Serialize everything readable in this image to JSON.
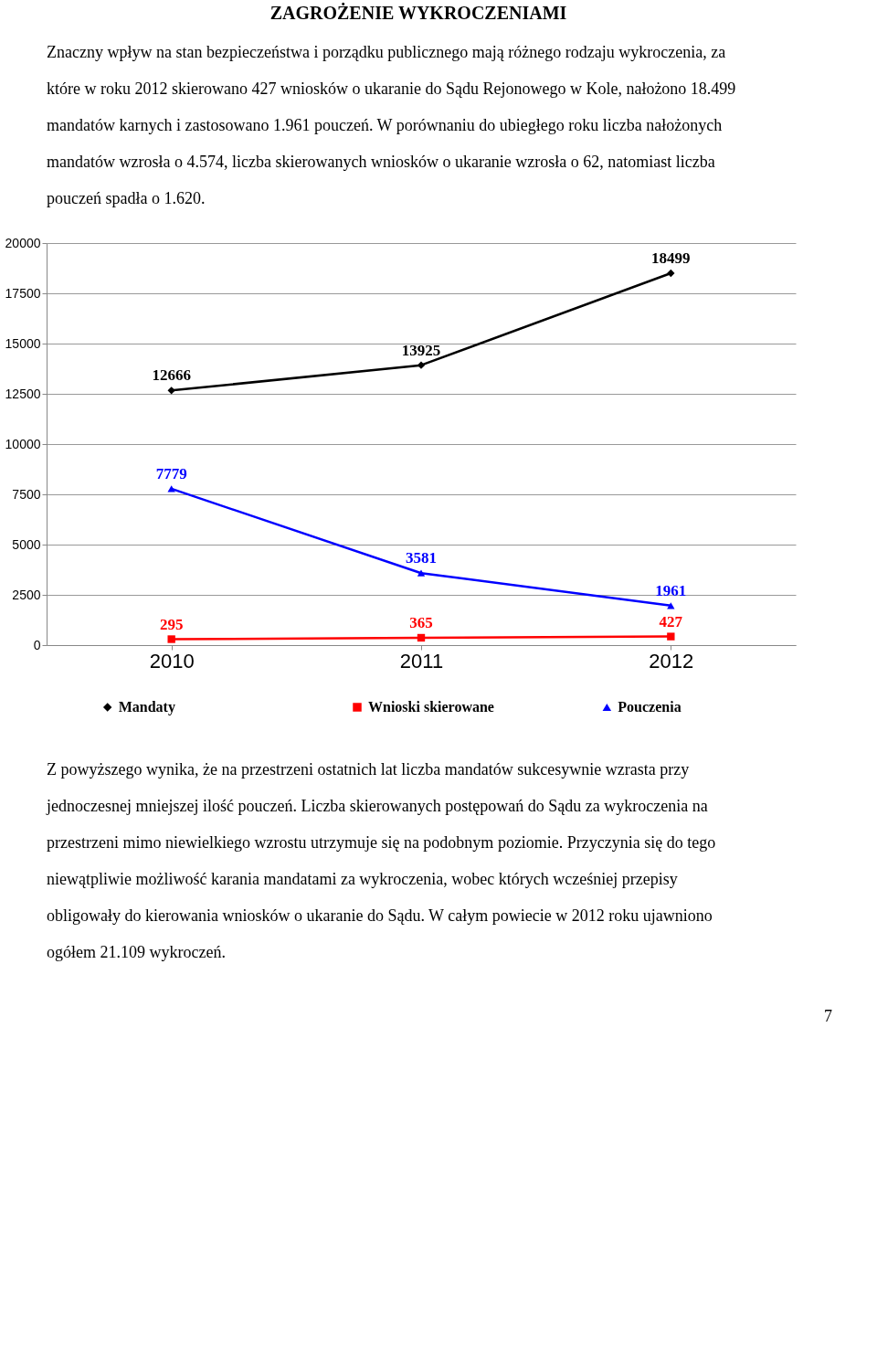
{
  "chart_data": {
    "type": "line",
    "title": "ZAGROŻENIE WYKROCZENIAMI",
    "subtitle": "Znaczny wpływ na stan bezpieczeństwa i porządku publicznego mają różnego rodzaju wykroczenia, za które w roku 2012 skierowano 427 wniosków o ukaranie do Sądu Rejonowego w Kole, nałożono 18.499 mandatów karnych i zastosowano 1.961 pouczeń. W porównaniu do ubiegłego roku liczba nałożonych mandatów wzrosła o 4.574, liczba skierowanych wniosków o ukaranie wzrosła o 62, natomiast liczba pouczeń spadła o 1.620.",
    "categories": [
      "2010",
      "2011",
      "2012"
    ],
    "series": [
      {
        "name": "Mandaty",
        "color": "#000000",
        "marker": "diamond",
        "values": [
          12666,
          13925,
          18499
        ]
      },
      {
        "name": "Wnioski skierowane",
        "color": "#ff0000",
        "marker": "square",
        "values": [
          295,
          365,
          427
        ]
      },
      {
        "name": "Pouczenia",
        "color": "#0000ff",
        "marker": "triangle",
        "values": [
          7779,
          3581,
          1961
        ]
      }
    ],
    "ylim": [
      0,
      20000
    ],
    "yticks": [
      0,
      2500,
      5000,
      7500,
      10000,
      12500,
      15000,
      17500,
      20000
    ],
    "grid": "y",
    "legend": "bottom",
    "data_labels": true,
    "annotations": [
      "Z powyższego wynika, że na przestrzeni ostatnich lat liczba mandatów sukcesywnie wzrasta przy jednoczesnej mniejszej ilość pouczeń. Liczba skierowanych postępowań do Sądu za wykroczenia na przestrzeni mimo niewielkiego wzrostu utrzymuje się na podobnym poziomie. Przyczynia się do tego niewątpliwie możliwość karania mandatami za wykroczenia, wobec których wcześniej przepisy obligowały do kierowania wniosków o ukaranie do Sądu. W całym powiecie w 2012 roku ujawniono ogółem 21.109 wykroczeń.",
      "7"
    ]
  }
}
